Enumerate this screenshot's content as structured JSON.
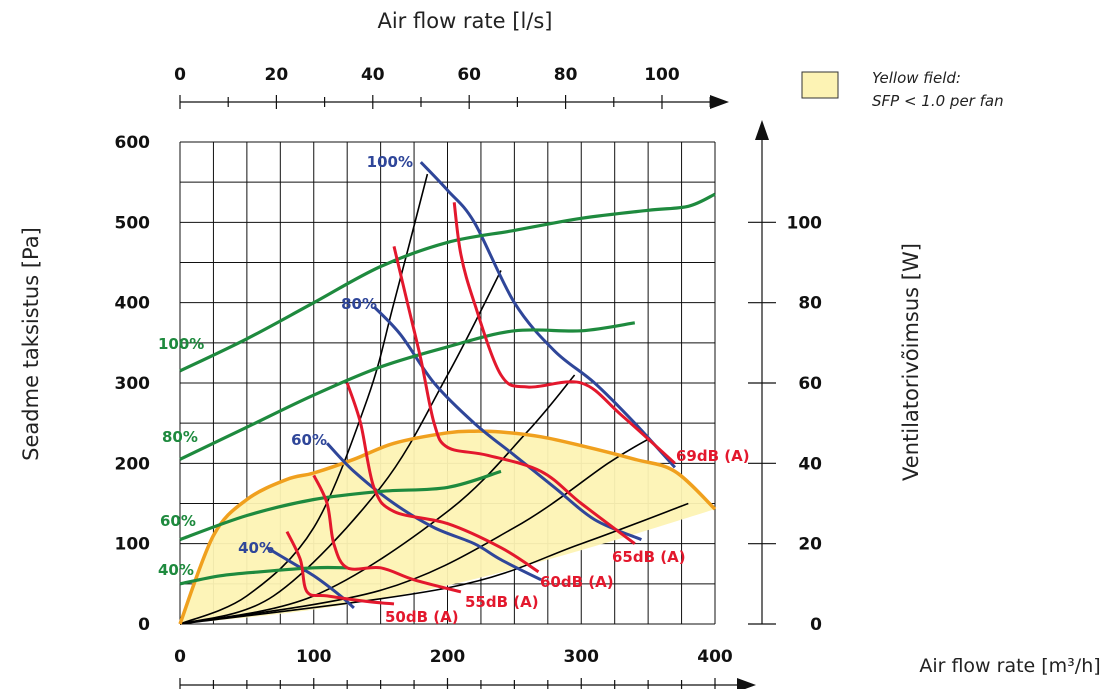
{
  "chart_data": {
    "type": "line",
    "title": "",
    "colors": {
      "green": "#1e8a3e",
      "blue": "#2f4699",
      "red": "#e3182d",
      "orange": "#f0a01e",
      "fill": "#fdf3b4",
      "grid": "#111111"
    },
    "x_bottom": {
      "label": "Air flow rate [m³/h]",
      "range": [
        0,
        400
      ],
      "ticks": [
        "0",
        "100",
        "200",
        "300",
        "400"
      ],
      "tick_values": [
        0,
        100,
        200,
        300,
        400
      ]
    },
    "x_top": {
      "label": "Air flow rate [l/s]",
      "range": [
        0,
        111
      ],
      "ticks": [
        "0",
        "20",
        "40",
        "60",
        "80",
        "100"
      ],
      "tick_values": [
        0,
        20,
        40,
        60,
        80,
        100
      ]
    },
    "y_left": {
      "label": "Seadme taksistus [Pa]",
      "range": [
        0,
        600
      ],
      "ticks": [
        "0",
        "100",
        "200",
        "300",
        "400",
        "500",
        "600"
      ],
      "tick_values": [
        0,
        100,
        200,
        300,
        400,
        500,
        600
      ]
    },
    "y_right": {
      "label": "Ventilatorivõimsus  [W]",
      "range": [
        0,
        120
      ],
      "ticks": [
        "0",
        "20",
        "40",
        "60",
        "80",
        "100"
      ],
      "tick_values": [
        0,
        20,
        40,
        60,
        80,
        100
      ]
    },
    "legend": {
      "line1": "Yellow field:",
      "line2": "SFP < 1.0 per fan"
    },
    "sfp_region": {
      "upper": [
        [
          0,
          0
        ],
        [
          25,
          110
        ],
        [
          50,
          155
        ],
        [
          80,
          180
        ],
        [
          100,
          188
        ],
        [
          130,
          205
        ],
        [
          160,
          225
        ],
        [
          200,
          238
        ],
        [
          220,
          240
        ],
        [
          240,
          239
        ],
        [
          270,
          233
        ],
        [
          300,
          222
        ],
        [
          340,
          205
        ],
        [
          370,
          190
        ],
        [
          400,
          143
        ]
      ],
      "lower": [
        [
          400,
          143
        ],
        [
          300,
          92
        ],
        [
          200,
          48
        ],
        [
          100,
          18
        ],
        [
          0,
          0
        ]
      ]
    },
    "power_series": [
      {
        "name": "100%",
        "values": [
          [
            0,
            63
          ],
          [
            50,
            71
          ],
          [
            100,
            80
          ],
          [
            150,
            89
          ],
          [
            200,
            95
          ],
          [
            250,
            98
          ],
          [
            300,
            101
          ],
          [
            350,
            103
          ],
          [
            380,
            104
          ],
          [
            400,
            107
          ]
        ]
      },
      {
        "name": "80%",
        "values": [
          [
            0,
            41
          ],
          [
            50,
            49
          ],
          [
            100,
            57
          ],
          [
            150,
            64
          ],
          [
            200,
            69
          ],
          [
            250,
            73
          ],
          [
            300,
            73
          ],
          [
            340,
            75
          ]
        ]
      },
      {
        "name": "60%",
        "values": [
          [
            0,
            21
          ],
          [
            50,
            27
          ],
          [
            100,
            31
          ],
          [
            150,
            33
          ],
          [
            200,
            34
          ],
          [
            240,
            38
          ]
        ]
      },
      {
        "name": "40%",
        "values": [
          [
            0,
            10
          ],
          [
            30,
            12
          ],
          [
            60,
            13
          ],
          [
            100,
            14
          ],
          [
            125,
            14
          ]
        ]
      }
    ],
    "pressure_series": [
      {
        "name": "100%",
        "values": [
          [
            180,
            575
          ],
          [
            200,
            540
          ],
          [
            220,
            500
          ],
          [
            250,
            400
          ],
          [
            280,
            340
          ],
          [
            310,
            300
          ],
          [
            340,
            250
          ],
          [
            370,
            195
          ]
        ]
      },
      {
        "name": "80%",
        "values": [
          [
            145,
            395
          ],
          [
            165,
            360
          ],
          [
            190,
            300
          ],
          [
            220,
            250
          ],
          [
            250,
            210
          ],
          [
            280,
            170
          ],
          [
            310,
            130
          ],
          [
            345,
            105
          ]
        ]
      },
      {
        "name": "60%",
        "values": [
          [
            110,
            225
          ],
          [
            130,
            190
          ],
          [
            160,
            150
          ],
          [
            190,
            120
          ],
          [
            220,
            100
          ],
          [
            240,
            80
          ],
          [
            270,
            55
          ]
        ]
      },
      {
        "name": "40%",
        "values": [
          [
            65,
            95
          ],
          [
            80,
            80
          ],
          [
            100,
            60
          ],
          [
            120,
            35
          ],
          [
            130,
            20
          ]
        ]
      }
    ],
    "sound_series": [
      {
        "name": "50dB (A)",
        "values": [
          [
            80,
            115
          ],
          [
            90,
            80
          ],
          [
            95,
            40
          ],
          [
            110,
            35
          ],
          [
            140,
            28
          ],
          [
            160,
            25
          ]
        ]
      },
      {
        "name": "55dB (A)",
        "values": [
          [
            100,
            185
          ],
          [
            110,
            150
          ],
          [
            115,
            100
          ],
          [
            125,
            70
          ],
          [
            150,
            70
          ],
          [
            175,
            55
          ],
          [
            210,
            40
          ]
        ]
      },
      {
        "name": "60dB (A)",
        "values": [
          [
            125,
            300
          ],
          [
            135,
            250
          ],
          [
            145,
            170
          ],
          [
            160,
            140
          ],
          [
            200,
            125
          ],
          [
            240,
            95
          ],
          [
            268,
            65
          ]
        ]
      },
      {
        "name": "65dB (A)",
        "values": [
          [
            160,
            470
          ],
          [
            170,
            400
          ],
          [
            180,
            330
          ],
          [
            190,
            250
          ],
          [
            200,
            220
          ],
          [
            230,
            210
          ],
          [
            270,
            190
          ],
          [
            300,
            150
          ],
          [
            340,
            100
          ]
        ]
      },
      {
        "name": "69dB (A)",
        "values": [
          [
            205,
            525
          ],
          [
            210,
            460
          ],
          [
            220,
            400
          ],
          [
            240,
            310
          ],
          [
            260,
            295
          ],
          [
            300,
            300
          ],
          [
            330,
            260
          ],
          [
            370,
            200
          ]
        ]
      }
    ],
    "system_curves": [
      [
        [
          0,
          0
        ],
        [
          50,
          35
        ],
        [
          100,
          120
        ],
        [
          140,
          280
        ],
        [
          160,
          400
        ],
        [
          185,
          560
        ]
      ],
      [
        [
          0,
          0
        ],
        [
          70,
          35
        ],
        [
          150,
          170
        ],
        [
          200,
          310
        ],
        [
          240,
          440
        ]
      ],
      [
        [
          0,
          0
        ],
        [
          100,
          35
        ],
        [
          200,
          140
        ],
        [
          260,
          240
        ],
        [
          295,
          310
        ]
      ],
      [
        [
          0,
          0
        ],
        [
          150,
          42
        ],
        [
          250,
          120
        ],
        [
          320,
          200
        ],
        [
          350,
          230
        ]
      ],
      [
        [
          0,
          0
        ],
        [
          200,
          45
        ],
        [
          300,
          100
        ],
        [
          380,
          150
        ]
      ]
    ]
  }
}
